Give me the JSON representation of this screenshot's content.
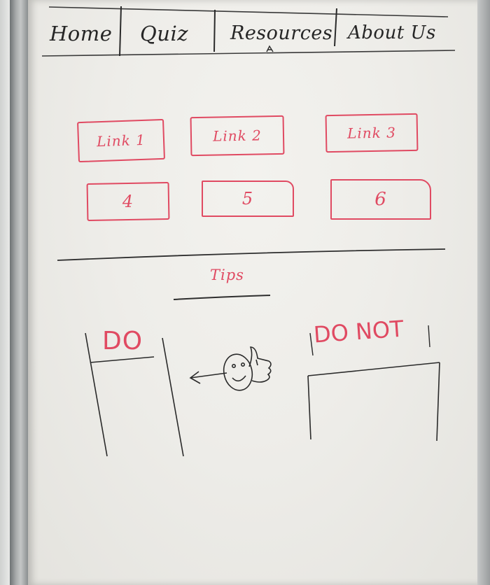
{
  "nav": {
    "items": [
      {
        "label": "Home"
      },
      {
        "label": "Quiz"
      },
      {
        "label": "Resources"
      },
      {
        "label": "About Us"
      }
    ]
  },
  "links": {
    "row1": [
      {
        "label": "Link 1"
      },
      {
        "label": "Link 2"
      },
      {
        "label": "Link 3"
      }
    ],
    "row2": [
      {
        "label": "4"
      },
      {
        "label": "5"
      },
      {
        "label": "6"
      }
    ]
  },
  "tips": {
    "title": "Tips",
    "do_label": "DO",
    "do_not_label": "DO NOT"
  },
  "colors": {
    "ink_black": "#262626",
    "ink_red": "#e04a62",
    "board": "#eeede9"
  },
  "icons": [
    "thumbs-up-face-icon",
    "arrow-left-icon"
  ]
}
